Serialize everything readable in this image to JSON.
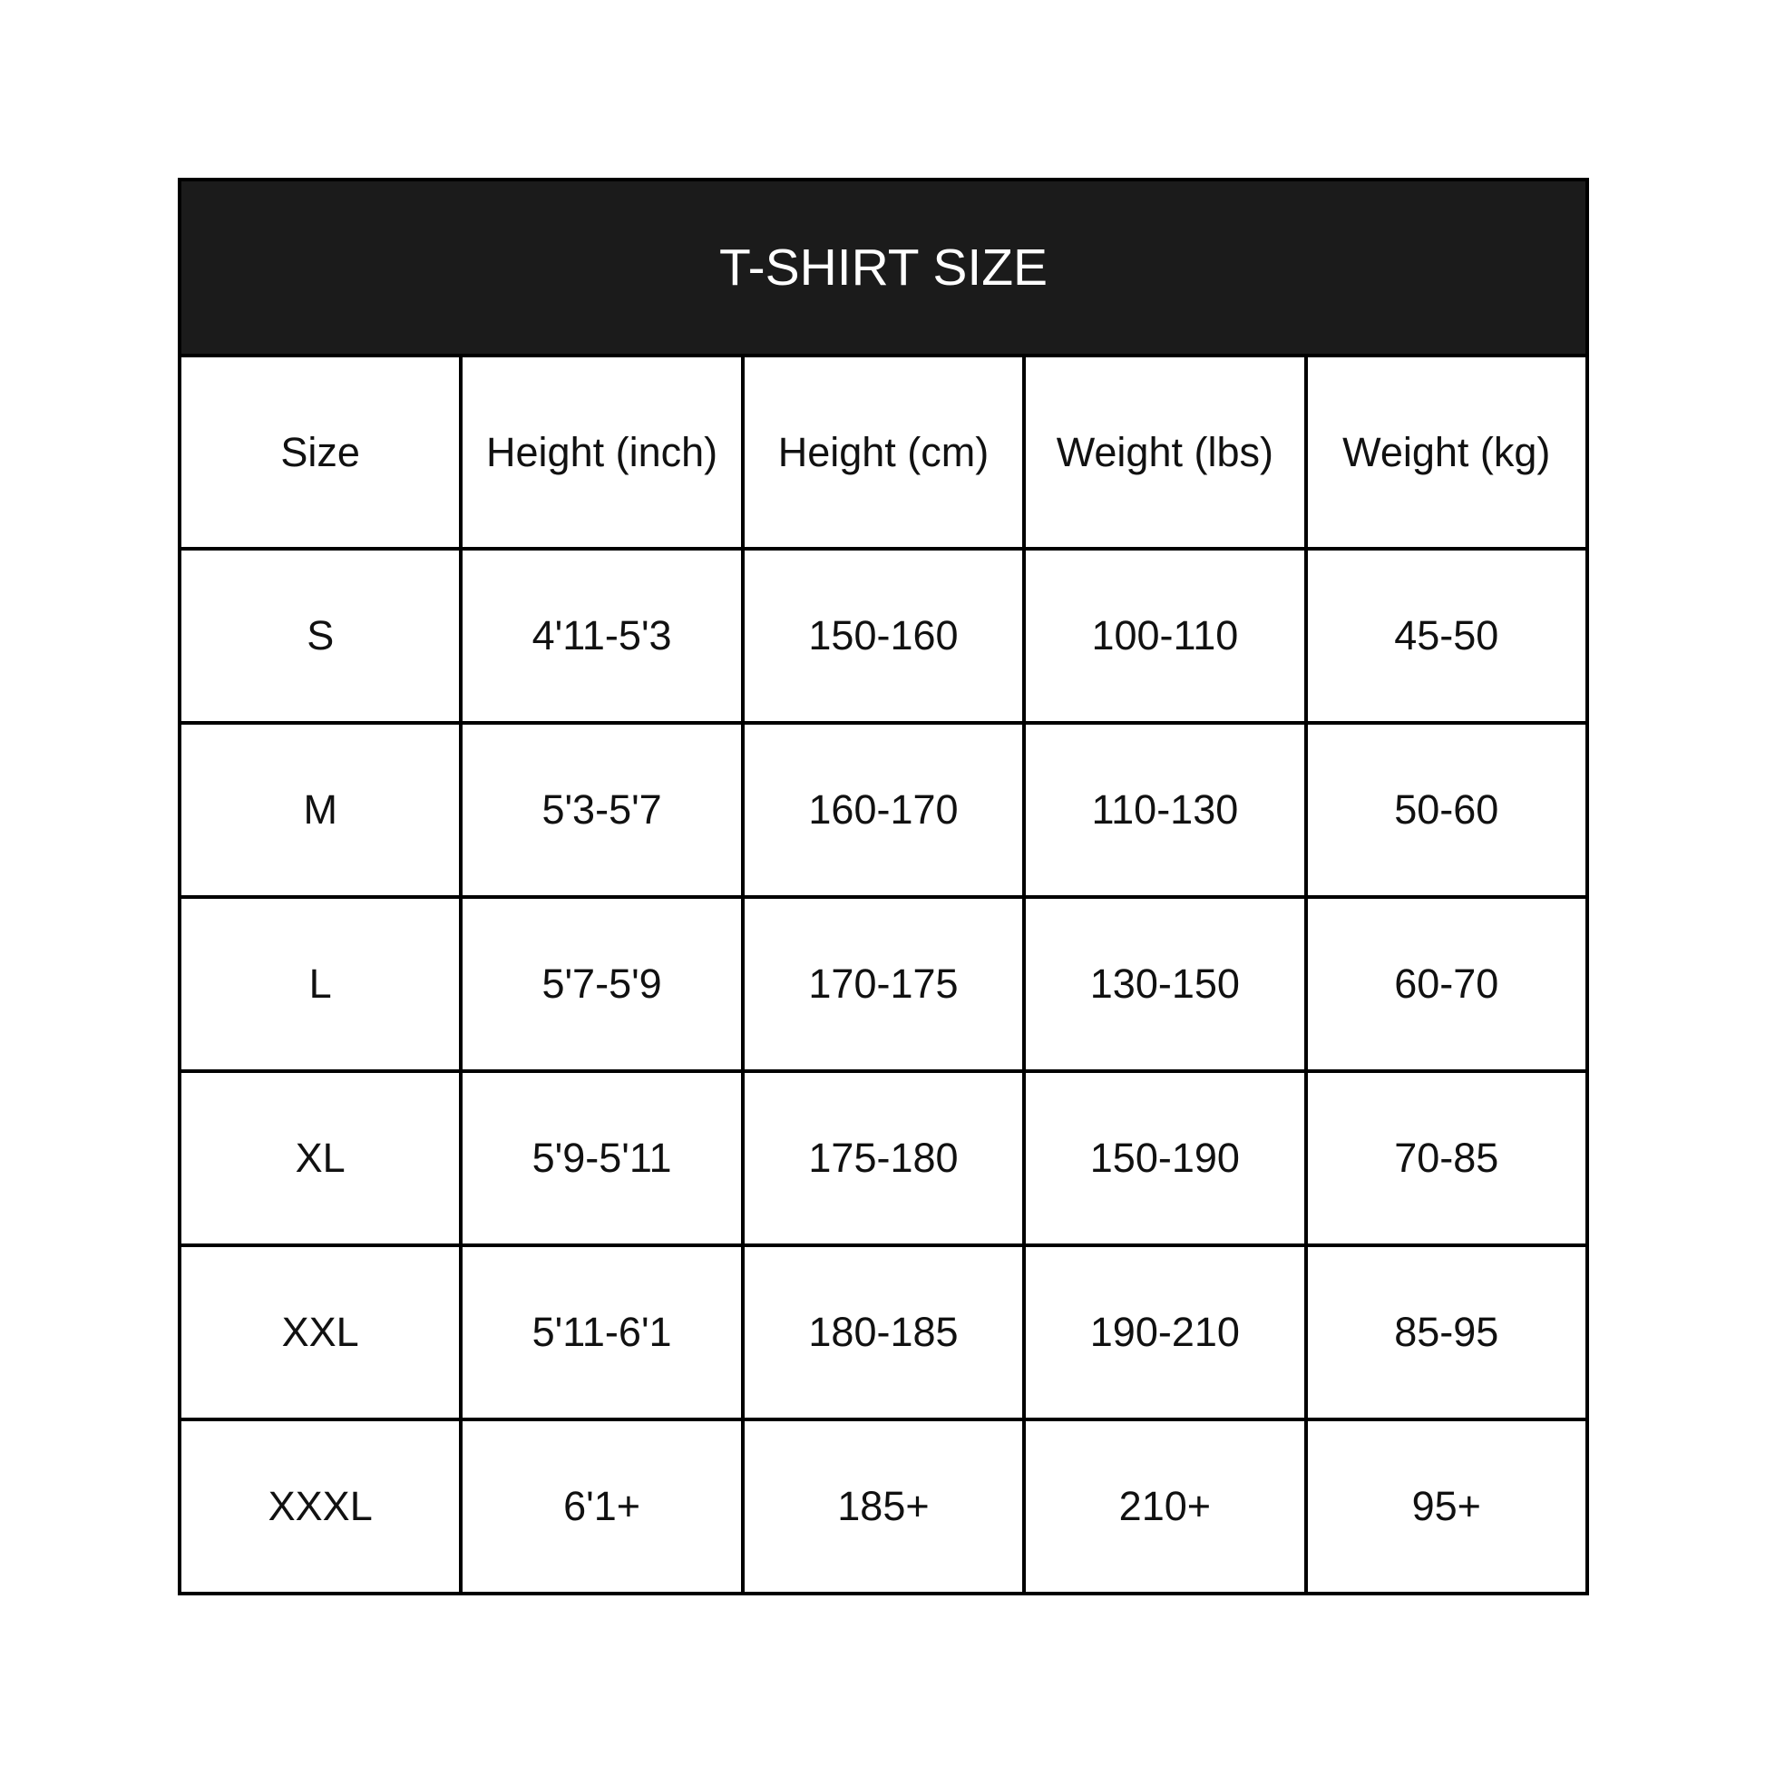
{
  "title": "T-SHIRT SIZE",
  "colors": {
    "header_bg": "#1b1b1b",
    "header_text": "#ffffff",
    "border": "#000000"
  },
  "columns": [
    "Size",
    "Height (inch)",
    "Height (cm)",
    "Weight (lbs)",
    "Weight (kg)"
  ],
  "rows": [
    [
      "S",
      "4'11-5'3",
      "150-160",
      "100-110",
      "45-50"
    ],
    [
      "M",
      "5'3-5'7",
      "160-170",
      "110-130",
      "50-60"
    ],
    [
      "L",
      "5'7-5'9",
      "170-175",
      "130-150",
      "60-70"
    ],
    [
      "XL",
      "5'9-5'11",
      "175-180",
      "150-190",
      "70-85"
    ],
    [
      "XXL",
      "5'11-6'1",
      "180-185",
      "190-210",
      "85-95"
    ],
    [
      "XXXL",
      "6'1+",
      "185+",
      "210+",
      "95+"
    ]
  ]
}
